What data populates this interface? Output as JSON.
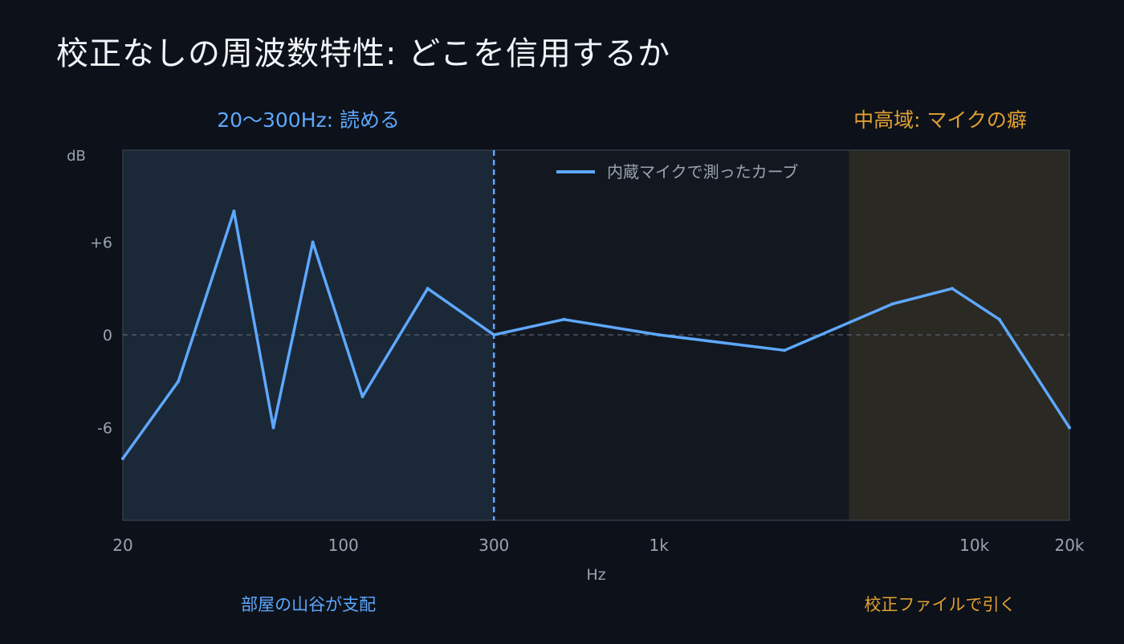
{
  "chart_data": {
    "type": "line",
    "title": "校正なしの周波数特性: どこを信用するか",
    "xlabel": "Hz",
    "ylabel": "dB",
    "x_scale": "log",
    "xlim": [
      20,
      20000
    ],
    "ylim": [
      -12,
      12
    ],
    "x_ticks": [
      {
        "value": 20,
        "label": "20"
      },
      {
        "value": 100,
        "label": "100"
      },
      {
        "value": 300,
        "label": "300"
      },
      {
        "value": 1000,
        "label": "1k"
      },
      {
        "value": 10000,
        "label": "10k"
      },
      {
        "value": 20000,
        "label": "20k"
      }
    ],
    "y_ticks": [
      {
        "value": 6,
        "label": "+6"
      },
      {
        "value": 0,
        "label": "0"
      },
      {
        "value": -6,
        "label": "-6"
      }
    ],
    "grid": false,
    "zero_line": true,
    "legend_position": "top-center",
    "series": [
      {
        "name": "内蔵マイクで測ったカーブ",
        "color": "#5ea8ff",
        "x": [
          20,
          30,
          45,
          60,
          80,
          115,
          185,
          300,
          500,
          1000,
          2500,
          5500,
          8500,
          12000,
          20000
        ],
        "y": [
          -8,
          -3,
          8,
          -6,
          6,
          -4,
          3,
          0,
          1,
          0,
          -1,
          2,
          3,
          1,
          -6
        ]
      }
    ],
    "regions": [
      {
        "x_range": [
          20,
          300
        ],
        "label": "20〜300Hz: 読める",
        "caption": "部屋の山谷が支配",
        "color": "#5ea8ff",
        "fill": "#1b2838"
      },
      {
        "x_range": [
          4000,
          20000
        ],
        "label": "中高域: マイクの癖",
        "caption": "校正ファイルで引く",
        "color": "#e0a033",
        "fill": "#2a2923"
      }
    ],
    "divider": {
      "x": 300,
      "style": "dashed",
      "color": "#5ea8ff"
    }
  }
}
